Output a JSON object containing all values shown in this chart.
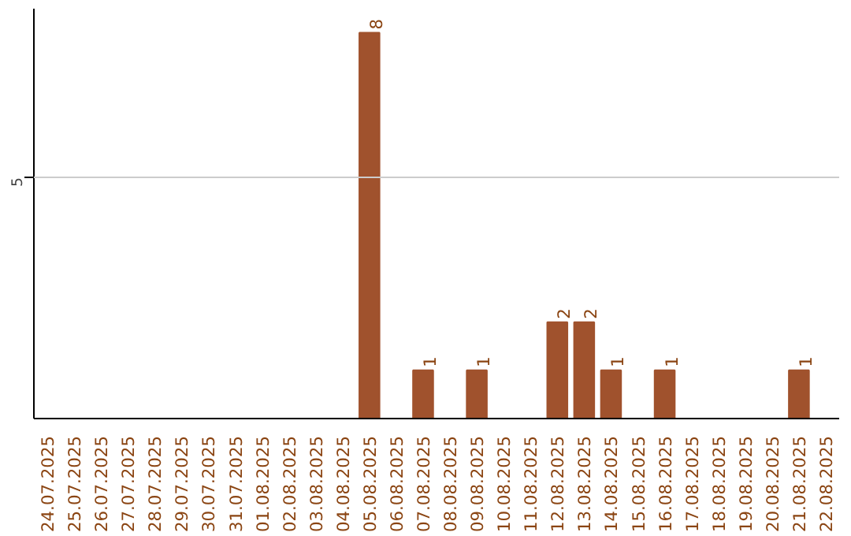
{
  "chart_data": {
    "type": "bar",
    "ylim": [
      0,
      8.5
    ],
    "categories": [
      "24.07.2025",
      "25.07.2025",
      "26.07.2025",
      "27.07.2025",
      "28.07.2025",
      "29.07.2025",
      "30.07.2025",
      "31.07.2025",
      "01.08.2025",
      "02.08.2025",
      "03.08.2025",
      "04.08.2025",
      "05.08.2025",
      "06.08.2025",
      "07.08.2025",
      "08.08.2025",
      "09.08.2025",
      "10.08.2025",
      "11.08.2025",
      "12.08.2025",
      "13.08.2025",
      "14.08.2025",
      "15.08.2025",
      "16.08.2025",
      "17.08.2025",
      "18.08.2025",
      "19.08.2025",
      "20.08.2025",
      "21.08.2025",
      "22.08.2025"
    ],
    "values": [
      null,
      null,
      null,
      null,
      null,
      null,
      null,
      null,
      null,
      null,
      null,
      null,
      8,
      null,
      1,
      null,
      1,
      null,
      null,
      2,
      2,
      1,
      null,
      1,
      null,
      null,
      null,
      null,
      1,
      null
    ],
    "value_labels": [
      null,
      null,
      null,
      null,
      null,
      null,
      null,
      null,
      null,
      null,
      null,
      null,
      "8",
      null,
      "1",
      null,
      "1",
      null,
      null,
      "2",
      "2",
      "1",
      null,
      "1",
      null,
      null,
      null,
      null,
      "1",
      null
    ],
    "color": "#a0522d",
    "ref_lines": [
      {
        "axis": "y",
        "value": 5,
        "label": "5",
        "color": "#cccccc"
      }
    ]
  }
}
